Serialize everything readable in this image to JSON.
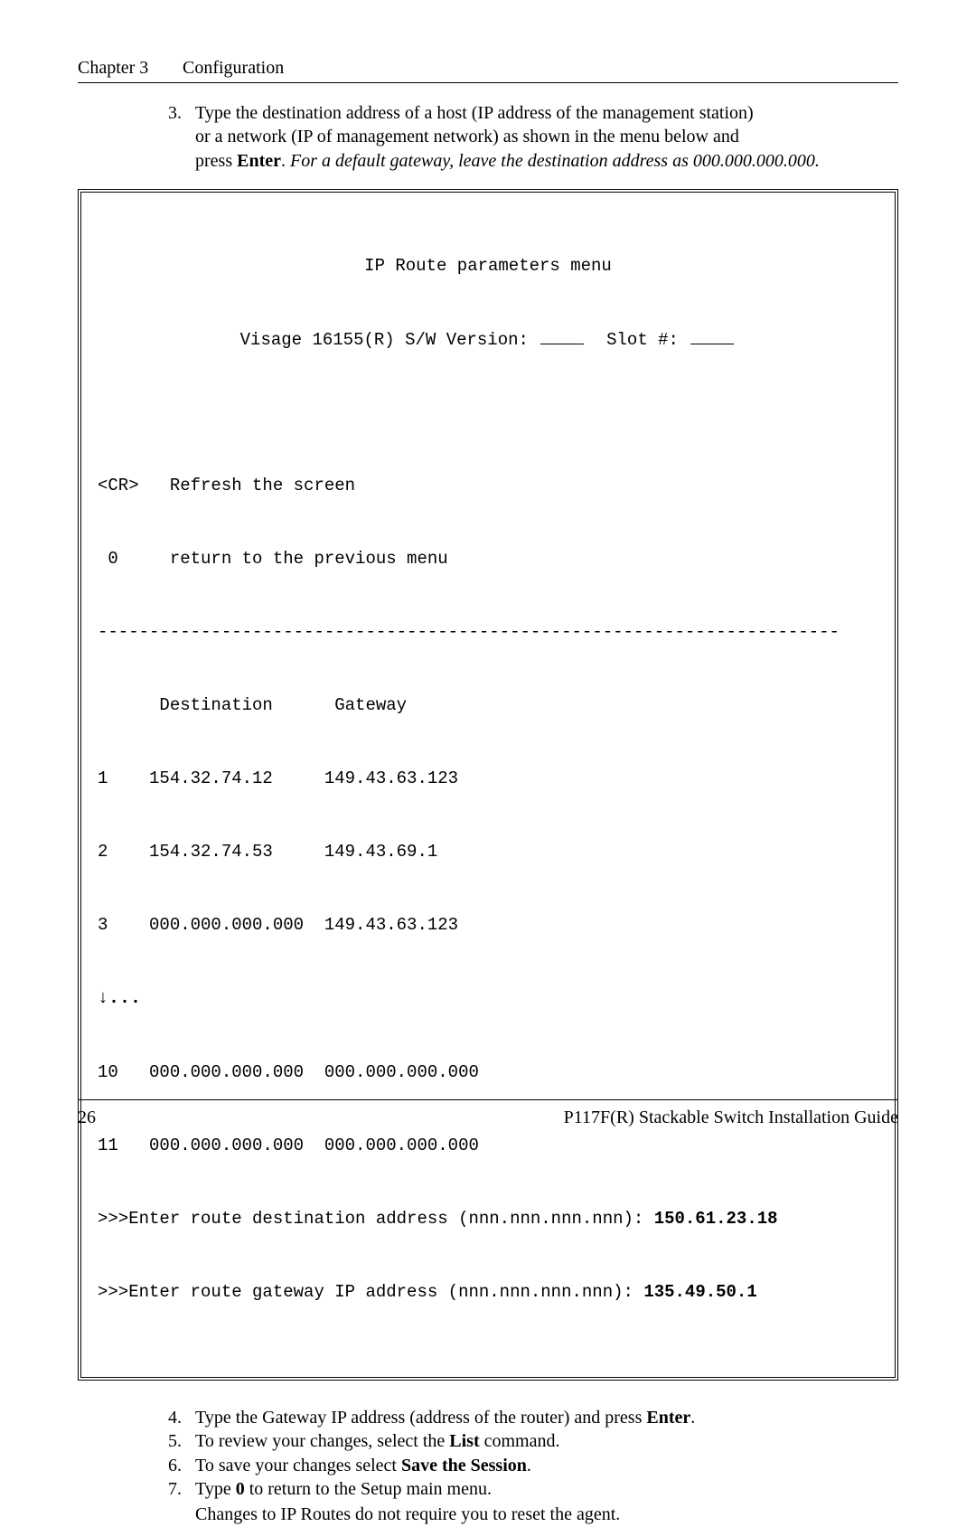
{
  "header": {
    "chapter": "Chapter 3",
    "title": "Configuration"
  },
  "step3": {
    "num": "3.",
    "line1": "Type the destination address of a host (IP address of the management station)",
    "line2_a": "or a network (IP of management network) as shown in the menu below and",
    "line3_a": "press ",
    "line3_b": "Enter",
    "line3_c": ". ",
    "line3_italic": "For a default gateway, leave the destination address as 000.000.000.000."
  },
  "terminal": {
    "title": "IP Route parameters menu",
    "subtitle_a": "Visage 16155(R) S/W Version: ",
    "subtitle_b": "  Slot #: ",
    "cr_line": "<CR>   Refresh the screen",
    "zero_line": " 0     return to the previous menu",
    "dashes": "------------------------------------------------------------------------",
    "cols": "      Destination      Gateway",
    "r1": "1    154.32.74.12     149.43.63.123",
    "r2": "2    154.32.74.53     149.43.69.1",
    "r3": "3    000.000.000.000  149.43.63.123",
    "arrow": "↓...",
    "r10": "10   000.000.000.000  000.000.000.000",
    "r11": "11   000.000.000.000  000.000.000.000",
    "p1_a": ">>>Enter route destination address (nnn.nnn.nnn.nnn): ",
    "p1_b": "150.61.23.18",
    "p2_a": ">>>Enter route gateway IP address (nnn.nnn.nnn.nnn): ",
    "p2_b": "135.49.50.1"
  },
  "step4": {
    "num": "4.",
    "a": "Type the Gateway IP address (address of the router) and press ",
    "b": "Enter",
    "c": "."
  },
  "step5": {
    "num": "5.",
    "a": "To review your changes, select the ",
    "b": "List",
    "c": " command."
  },
  "step6": {
    "num": "6.",
    "a": "To save your changes select ",
    "b": "Save the Session",
    "c": "."
  },
  "step7": {
    "num": "7.",
    "a": "Type ",
    "b": "0",
    "c": " to return to the Setup main menu."
  },
  "note": "Changes to IP Routes do not require you to reset the agent.",
  "footer": {
    "page": "26",
    "guide": "P117F(R) Stackable Switch Installation Guide"
  }
}
